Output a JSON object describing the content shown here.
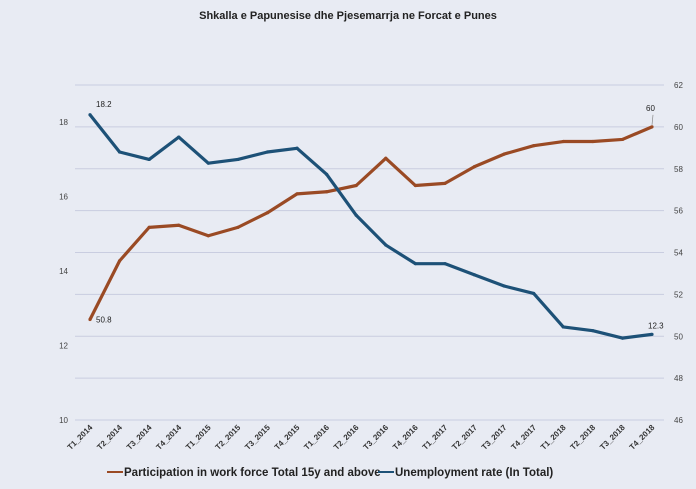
{
  "chart_data": {
    "type": "line",
    "title": "Shkalla  e Papunesise  dhe Pjesemarrja  ne Forcat e Punes",
    "categories": [
      "T1_2014",
      "T2_2014",
      "T3_2014",
      "T4_2014",
      "T1_2015",
      "T2_2015",
      "T3_2015",
      "T4_2015",
      "T1_2016",
      "T2_2016",
      "T3_2016",
      "T4_2016",
      "T1_2017",
      "T2_2017",
      "T3_2017",
      "T4_2017",
      "T1_2018",
      "T2_2018",
      "T3_2018",
      "T4_2018"
    ],
    "y_left": {
      "ylim": [
        10,
        19
      ],
      "ticks": [
        10,
        12,
        14,
        16,
        18
      ]
    },
    "y_right": {
      "ylim": [
        46,
        62
      ],
      "ticks": [
        46,
        48,
        50,
        52,
        54,
        56,
        58,
        60,
        62
      ]
    },
    "grid": true,
    "legend_position": "bottom",
    "series": [
      {
        "name": "Participation in work force  Total 15y and above",
        "axis": "right",
        "color": "#9a4a24",
        "values": [
          50.8,
          53.6,
          55.2,
          55.3,
          54.8,
          55.2,
          55.9,
          56.8,
          56.9,
          57.2,
          58.5,
          57.2,
          57.3,
          58.1,
          58.7,
          59.1,
          59.3,
          59.3,
          59.4,
          60.0
        ],
        "labels": {
          "first": "50.8",
          "last": "60"
        }
      },
      {
        "name": "Unemployment rate (In Total)",
        "axis": "left",
        "color": "#1d5177",
        "values": [
          18.2,
          17.2,
          17.0,
          17.6,
          16.9,
          17.0,
          17.2,
          17.3,
          16.6,
          15.5,
          14.7,
          14.2,
          14.2,
          13.9,
          13.6,
          13.4,
          12.5,
          12.4,
          12.2,
          12.3
        ],
        "labels": {
          "first": "18.2",
          "last": "12.3"
        }
      }
    ]
  },
  "colors": {
    "background": "#e8ebf3",
    "grid": "#c9cde0"
  }
}
